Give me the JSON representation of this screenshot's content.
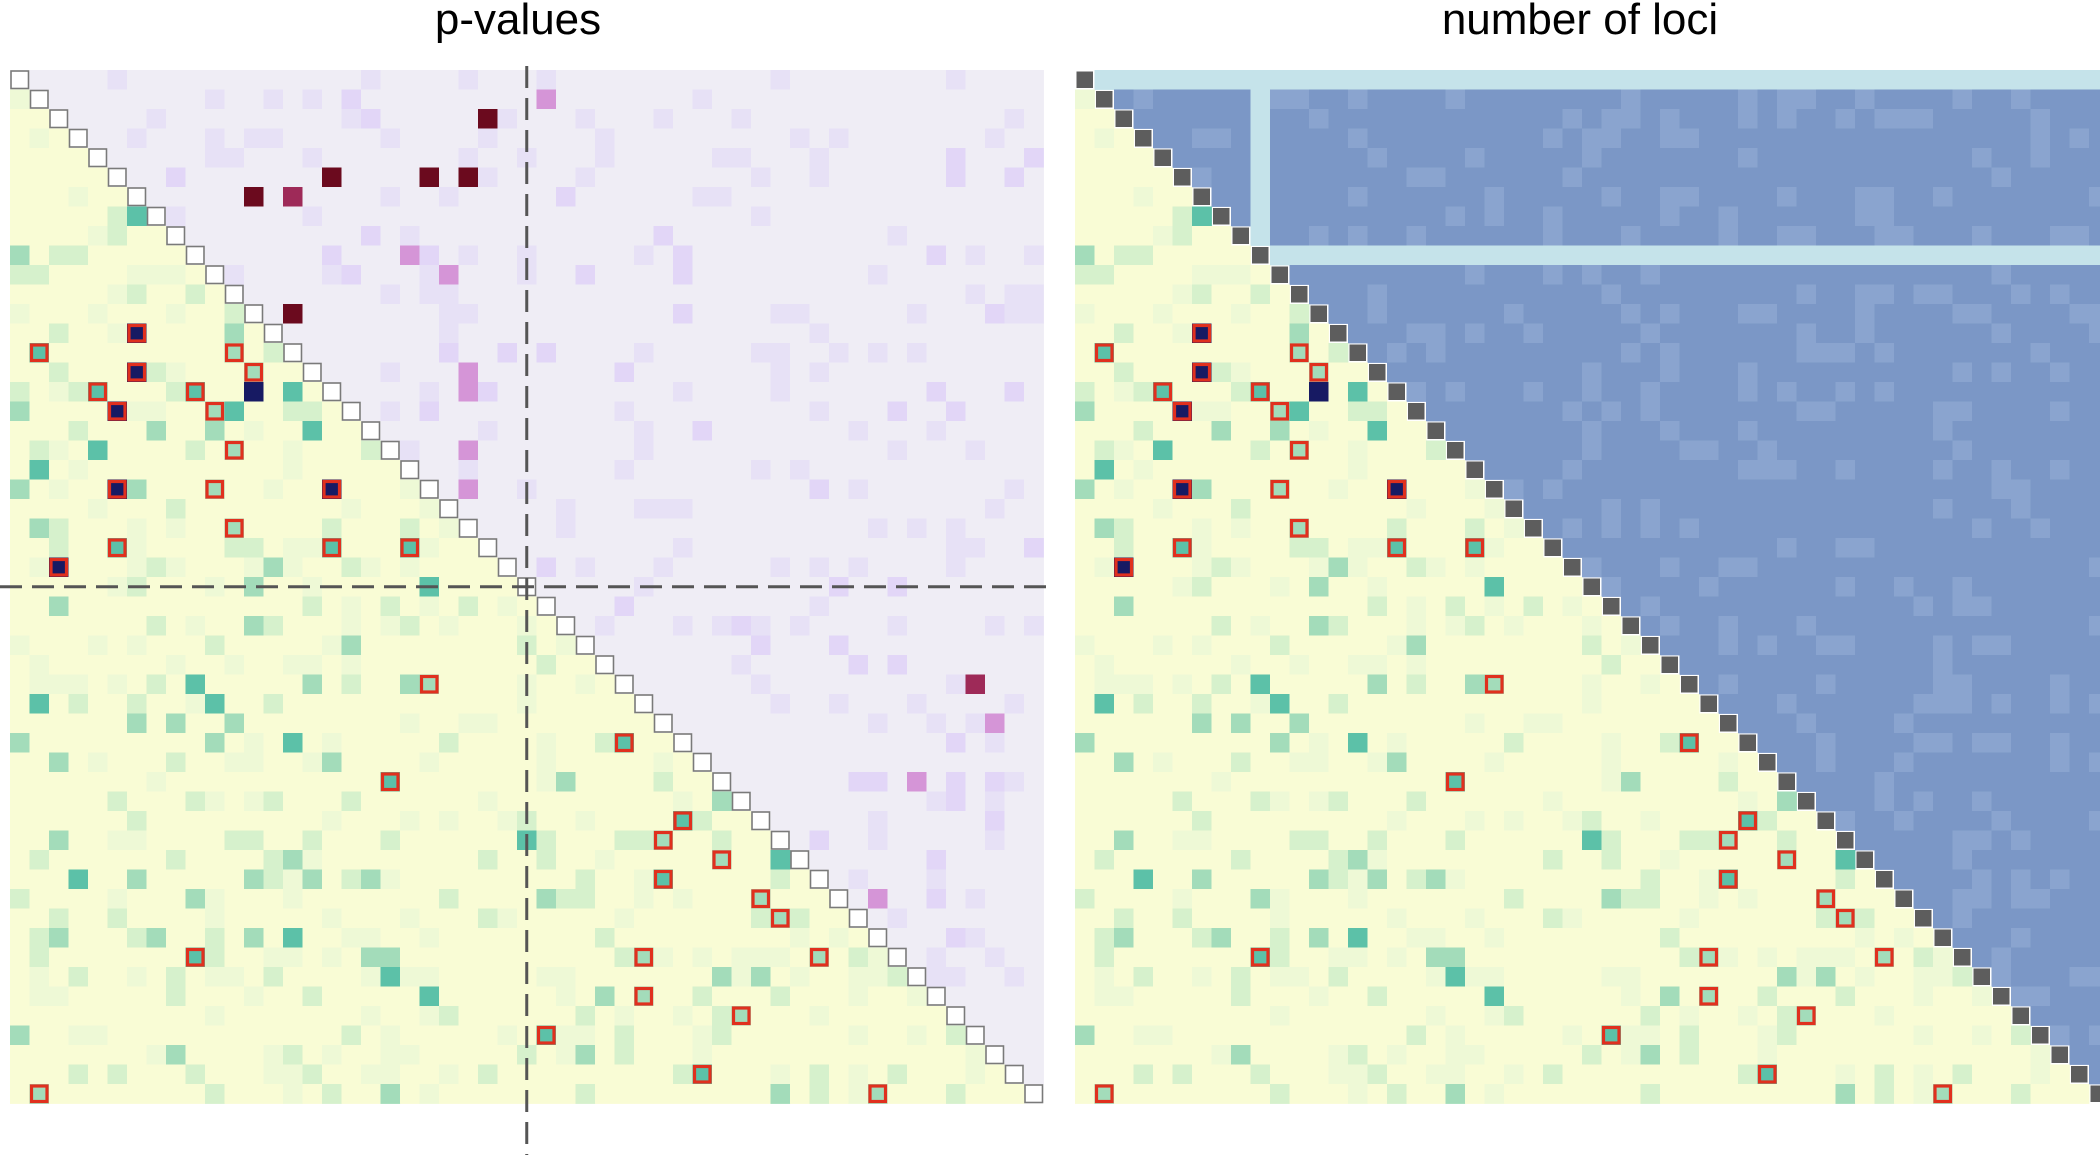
{
  "chart_data": [
    {
      "type": "heatmap",
      "title": "p-values",
      "matrix_size": 53,
      "dividers_at": 26.5,
      "lower_triangle": "pairwise significance (green scale)",
      "upper_triangle": "p-value (purple scale)",
      "colors": {
        "upper_base": "#efedf5",
        "upper_faint": "#e7e1f6",
        "upper_light": "#e2d6f7",
        "upper_medium": "#d595d7",
        "upper_strong": "#9e2a58",
        "upper_darkest": "#6b0a1e",
        "lower_base": "#f9fcd5",
        "lower_faint": "#eef9d6",
        "lower_light": "#d6f1cc",
        "lower_medium": "#a3dcba",
        "lower_strong": "#5cc1a8",
        "lower_darkest": "#171a63",
        "highlight_outline": "#e0301e",
        "diagonal_outline": "#7a7a7a",
        "divider": "#555555"
      },
      "highlighted_cells": [
        [
          13,
          6
        ],
        [
          14,
          1
        ],
        [
          14,
          11
        ],
        [
          15,
          6
        ],
        [
          15,
          12
        ],
        [
          16,
          4
        ],
        [
          16,
          9
        ],
        [
          17,
          5
        ],
        [
          17,
          10
        ],
        [
          19,
          11
        ],
        [
          21,
          5
        ],
        [
          21,
          10
        ],
        [
          21,
          16
        ],
        [
          23,
          11
        ],
        [
          24,
          5
        ],
        [
          24,
          16
        ],
        [
          24,
          20
        ],
        [
          25,
          2
        ],
        [
          31,
          21
        ],
        [
          34,
          31
        ],
        [
          36,
          19
        ],
        [
          38,
          34
        ],
        [
          39,
          33
        ],
        [
          40,
          36
        ],
        [
          41,
          33
        ],
        [
          42,
          38
        ],
        [
          43,
          39
        ],
        [
          45,
          9
        ],
        [
          45,
          32
        ],
        [
          45,
          41
        ],
        [
          47,
          32
        ],
        [
          48,
          37
        ],
        [
          49,
          27
        ],
        [
          51,
          35
        ],
        [
          52,
          1
        ],
        [
          52,
          44
        ]
      ],
      "strong_upper_cells": [
        [
          2,
          24
        ],
        [
          5,
          16
        ],
        [
          5,
          21
        ],
        [
          5,
          23
        ],
        [
          6,
          12
        ],
        [
          6,
          14
        ],
        [
          12,
          14
        ],
        [
          31,
          49
        ],
        [
          31,
          49
        ],
        [
          40,
          34
        ]
      ]
    },
    {
      "type": "heatmap",
      "title": "number of loci",
      "matrix_size": 53,
      "lower_triangle": "pairwise significance (green scale)",
      "upper_triangle": "number of loci (blue scale)",
      "colors": {
        "upper_base": "#7b97c6",
        "upper_light_band": "#c5e3ea",
        "diagonal_fill": "#5d5d5d"
      },
      "light_band_row": 9,
      "light_band_col": 9
    }
  ]
}
